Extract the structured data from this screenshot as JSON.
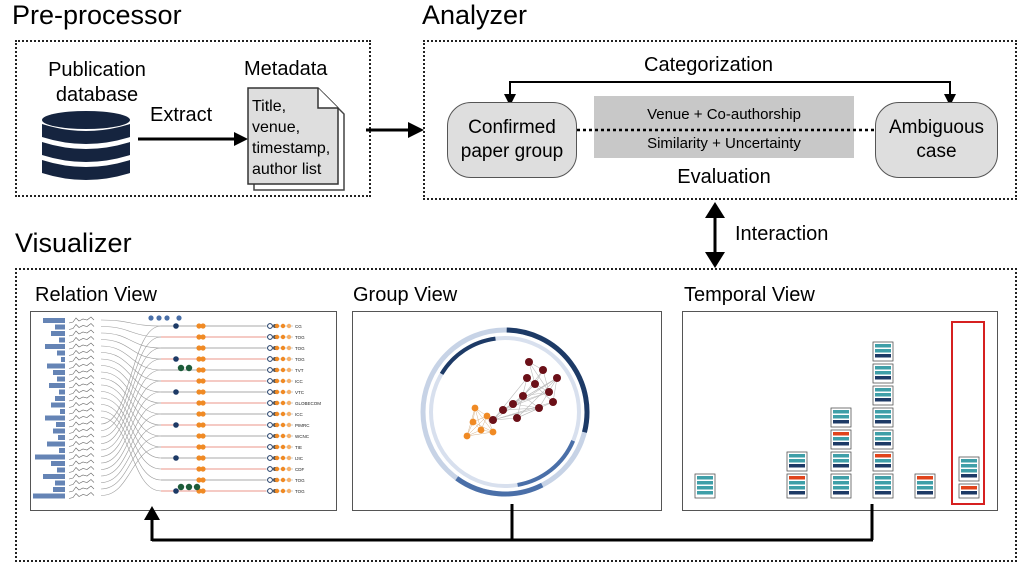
{
  "preprocessor": {
    "title": "Pre-processor",
    "database_label": "Publication\ndatabase",
    "extract_label": "Extract",
    "metadata_label": "Metadata",
    "metadata_doc": "Title,\nvenue,\ntimestamp,\nauthor list",
    "database_icon": "database-icon",
    "document_icon": "document-icon"
  },
  "analyzer": {
    "title": "Analyzer",
    "categorization_label": "Categorization",
    "confirmed_label": "Confirmed\npaper group",
    "ambiguous_label": "Ambiguous\ncase",
    "criteria_line1": "Venue + Co-authorship",
    "criteria_line2": "Similarity + Uncertainty",
    "evaluation_label": "Evaluation"
  },
  "interaction_label": "Interaction",
  "visualizer": {
    "title": "Visualizer",
    "views": [
      {
        "label": "Relation View"
      },
      {
        "label": "Group View"
      },
      {
        "label": "Temporal View"
      }
    ],
    "relation_labels": [
      "CG",
      "TOG",
      "TOG",
      "TOG",
      "TVT",
      "ICC",
      "VTC",
      "GLOBECOM",
      "ICC",
      "PIMRC",
      "WCNC",
      "TIE",
      "IJIC",
      "CDF",
      "TOG",
      "TOG"
    ]
  },
  "colors": {
    "box_fill": "#dedede",
    "criteria_fill": "#c8c8c8",
    "teal": "#3f9fa8",
    "navy": "#1d3a66",
    "orange_red": "#e0431b",
    "highlight_red": "#d62020",
    "dark_red": "#6b1018",
    "orange": "#f08a24",
    "steel_blue": "#4a6fa8"
  }
}
